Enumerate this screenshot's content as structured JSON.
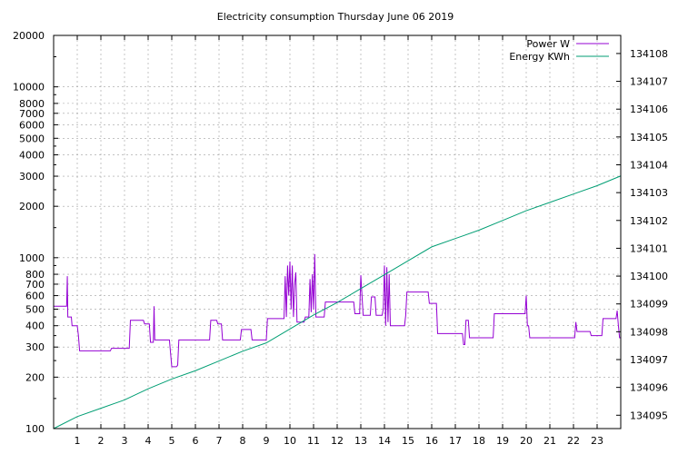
{
  "chart_data": {
    "type": "line",
    "title": "Electricity consumption Thursday June 06 2019",
    "x": {
      "range": [
        0,
        24
      ],
      "ticks": [
        1,
        2,
        3,
        4,
        5,
        6,
        7,
        8,
        9,
        10,
        11,
        12,
        13,
        14,
        15,
        16,
        17,
        18,
        19,
        20,
        21,
        22,
        23
      ],
      "grid": true
    },
    "y_left": {
      "scale": "log",
      "range": [
        100,
        20000
      ],
      "ticks": [
        100,
        200,
        300,
        400,
        500,
        600,
        700,
        800,
        1000,
        2000,
        3000,
        4000,
        5000,
        6000,
        7000,
        8000,
        10000,
        20000
      ],
      "grid_at": [
        200,
        300,
        400,
        500,
        600,
        700,
        800,
        1000,
        2000,
        3000,
        4000,
        5000,
        6000,
        7000,
        8000,
        10000
      ]
    },
    "y_right": {
      "scale": "linear",
      "range": [
        134094.52,
        134108.65
      ],
      "ticks": [
        134095,
        134096,
        134097,
        134098,
        134099,
        134100,
        134101,
        134102,
        134103,
        134104,
        134105,
        134106,
        134107,
        134108
      ]
    },
    "legend": {
      "placement": "top-right"
    },
    "series": [
      {
        "name": "Power W",
        "axis": "left",
        "color": "#9400d3",
        "points": [
          [
            0,
            520
          ],
          [
            0.55,
            520
          ],
          [
            0.58,
            780
          ],
          [
            0.6,
            450
          ],
          [
            0.75,
            450
          ],
          [
            0.78,
            400
          ],
          [
            1.0,
            400
          ],
          [
            1.05,
            350
          ],
          [
            1.1,
            285
          ],
          [
            2.4,
            285
          ],
          [
            2.45,
            295
          ],
          [
            3.2,
            295
          ],
          [
            3.25,
            430
          ],
          [
            3.8,
            430
          ],
          [
            3.85,
            410
          ],
          [
            4.05,
            410
          ],
          [
            4.1,
            320
          ],
          [
            4.22,
            320
          ],
          [
            4.25,
            520
          ],
          [
            4.28,
            330
          ],
          [
            4.9,
            330
          ],
          [
            5.0,
            230
          ],
          [
            5.2,
            230
          ],
          [
            5.25,
            235
          ],
          [
            5.3,
            330
          ],
          [
            6.6,
            330
          ],
          [
            6.65,
            430
          ],
          [
            6.9,
            430
          ],
          [
            6.95,
            410
          ],
          [
            7.1,
            410
          ],
          [
            7.15,
            330
          ],
          [
            7.9,
            330
          ],
          [
            7.95,
            380
          ],
          [
            8.35,
            380
          ],
          [
            8.4,
            330
          ],
          [
            9.0,
            330
          ],
          [
            9.05,
            440
          ],
          [
            9.75,
            440
          ],
          [
            9.8,
            780
          ],
          [
            9.85,
            450
          ],
          [
            9.9,
            900
          ],
          [
            9.95,
            600
          ],
          [
            10.0,
            950
          ],
          [
            10.05,
            500
          ],
          [
            10.1,
            900
          ],
          [
            10.15,
            450
          ],
          [
            10.2,
            700
          ],
          [
            10.25,
            820
          ],
          [
            10.3,
            420
          ],
          [
            10.6,
            420
          ],
          [
            10.65,
            450
          ],
          [
            10.8,
            450
          ],
          [
            10.85,
            750
          ],
          [
            10.9,
            480
          ],
          [
            10.95,
            800
          ],
          [
            11.0,
            500
          ],
          [
            11.05,
            1050
          ],
          [
            11.1,
            450
          ],
          [
            11.45,
            450
          ],
          [
            11.5,
            550
          ],
          [
            12.7,
            550
          ],
          [
            12.75,
            470
          ],
          [
            12.95,
            470
          ],
          [
            13.0,
            790
          ],
          [
            13.05,
            600
          ],
          [
            13.1,
            460
          ],
          [
            13.4,
            460
          ],
          [
            13.45,
            590
          ],
          [
            13.6,
            590
          ],
          [
            13.65,
            460
          ],
          [
            13.9,
            460
          ],
          [
            13.95,
            500
          ],
          [
            14.0,
            900
          ],
          [
            14.05,
            400
          ],
          [
            14.1,
            880
          ],
          [
            14.15,
            420
          ],
          [
            14.2,
            800
          ],
          [
            14.25,
            400
          ],
          [
            14.3,
            400
          ],
          [
            14.85,
            400
          ],
          [
            14.9,
            460
          ],
          [
            14.95,
            630
          ],
          [
            15.85,
            630
          ],
          [
            15.9,
            540
          ],
          [
            16.2,
            540
          ],
          [
            16.25,
            360
          ],
          [
            17.3,
            360
          ],
          [
            17.35,
            310
          ],
          [
            17.4,
            310
          ],
          [
            17.45,
            430
          ],
          [
            17.55,
            430
          ],
          [
            17.6,
            340
          ],
          [
            18.6,
            340
          ],
          [
            18.65,
            470
          ],
          [
            19.95,
            470
          ],
          [
            20.0,
            600
          ],
          [
            20.05,
            400
          ],
          [
            20.1,
            400
          ],
          [
            20.15,
            340
          ],
          [
            22.05,
            340
          ],
          [
            22.1,
            420
          ],
          [
            22.15,
            370
          ],
          [
            22.7,
            370
          ],
          [
            22.75,
            350
          ],
          [
            23.2,
            350
          ],
          [
            23.25,
            440
          ],
          [
            23.8,
            440
          ],
          [
            23.85,
            490
          ],
          [
            23.9,
            400
          ],
          [
            23.95,
            340
          ],
          [
            24.0,
            340
          ]
        ]
      },
      {
        "name": "Energy KWh",
        "axis": "right",
        "color": "#009e73",
        "points": [
          [
            0,
            134094.52
          ],
          [
            1,
            134094.95
          ],
          [
            2,
            134095.25
          ],
          [
            3,
            134095.55
          ],
          [
            4,
            134095.95
          ],
          [
            5,
            134096.3
          ],
          [
            6,
            134096.6
          ],
          [
            7,
            134096.95
          ],
          [
            8,
            134097.3
          ],
          [
            9,
            134097.6
          ],
          [
            10,
            134098.1
          ],
          [
            11,
            134098.6
          ],
          [
            12,
            134099.05
          ],
          [
            13,
            134099.55
          ],
          [
            14,
            134100.05
          ],
          [
            15,
            134100.55
          ],
          [
            16,
            134101.05
          ],
          [
            17,
            134101.35
          ],
          [
            18,
            134101.65
          ],
          [
            19,
            134102.0
          ],
          [
            20,
            134102.35
          ],
          [
            21,
            134102.65
          ],
          [
            22,
            134102.95
          ],
          [
            23,
            134103.25
          ],
          [
            24,
            134103.6
          ]
        ]
      }
    ]
  }
}
